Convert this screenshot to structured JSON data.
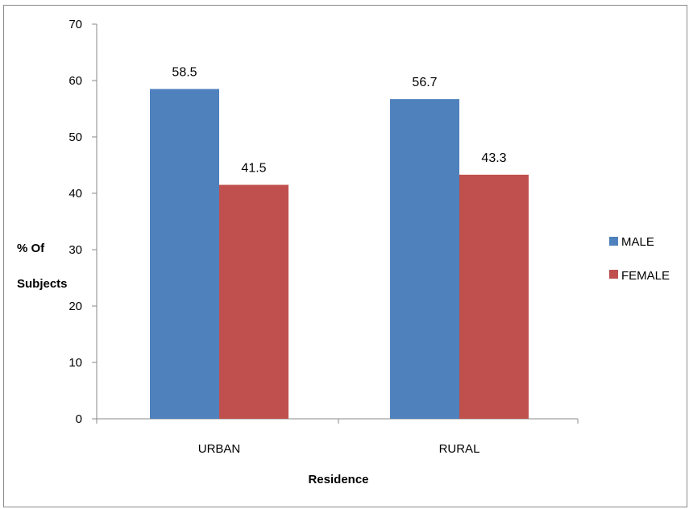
{
  "chart_data": {
    "type": "bar",
    "categories": [
      "URBAN",
      "RURAL"
    ],
    "series": [
      {
        "name": "MALE",
        "values": [
          58.5,
          56.7
        ],
        "color": "#4f81bd"
      },
      {
        "name": "FEMALE",
        "values": [
          41.5,
          43.3
        ],
        "color": "#c0504d"
      }
    ],
    "title": "",
    "xlabel": "Residence",
    "ylabel_lines": [
      "% Of",
      "Subjects"
    ],
    "ylim": [
      0,
      70
    ],
    "yticks": [
      0,
      10,
      20,
      30,
      40,
      50,
      60,
      70
    ],
    "grid": false,
    "legend_position": "right",
    "data_labels": true
  }
}
